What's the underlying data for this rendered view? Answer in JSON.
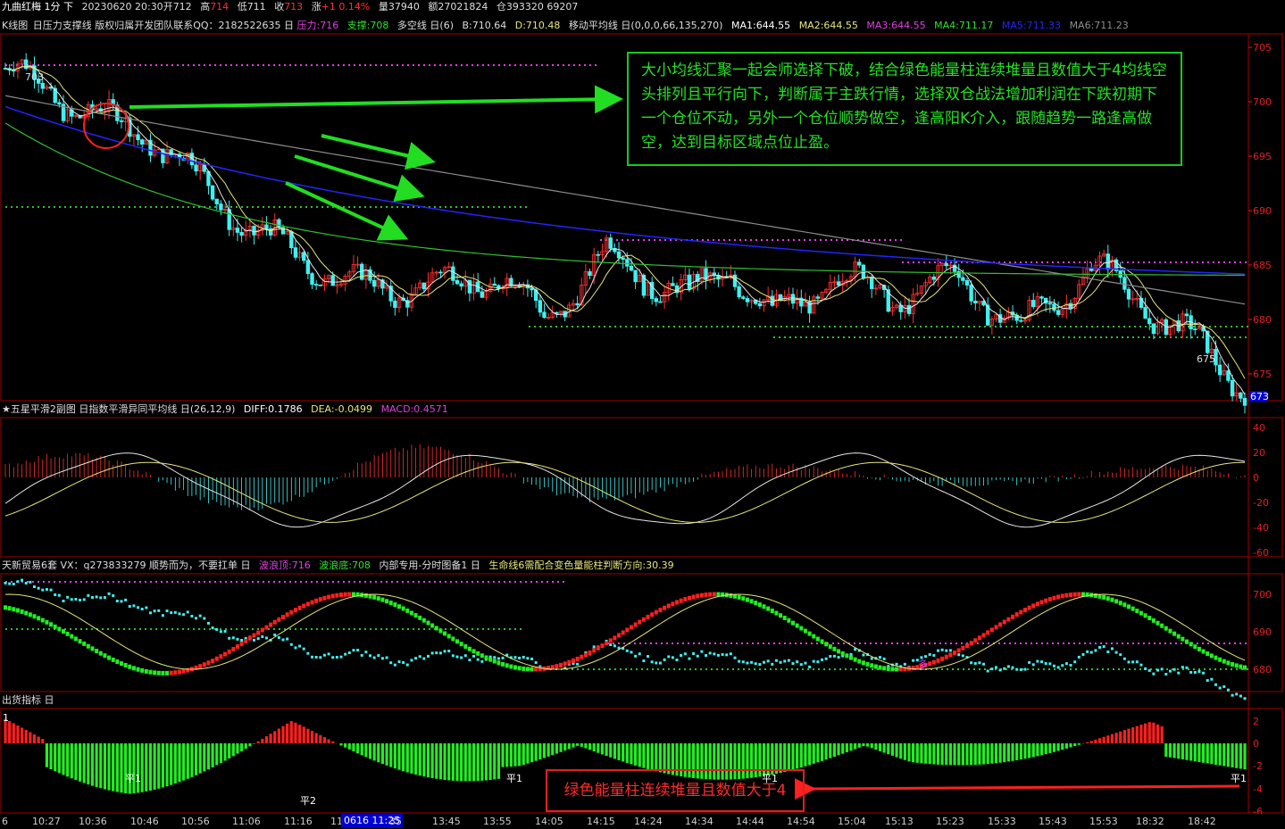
{
  "header": {
    "title": "九曲红梅 1分 下",
    "date": "20230620 20:30",
    "open_label": "开",
    "open": "712",
    "high_label": "高",
    "high": "714",
    "low_label": "低",
    "low": "711",
    "close_label": "收",
    "close": "713",
    "change_label": "涨",
    "change": "+1 0.14%",
    "volume": "量37940",
    "amount": "额27021824",
    "position": "仓393320 69207"
  },
  "kline_panel": {
    "label": "K线图",
    "indicator": "日压力支撑线 版权归属开发团队联系QQ：2182522635 日",
    "pressure": "压力:716",
    "support": "支撑:708",
    "multi_empty": "多空线 日(6)",
    "b": "B:710.64",
    "d": "D:710.48",
    "ma_name": "移动平均线 日(0,0,0,66,135,270)",
    "ma1": "MA1:644.55",
    "ma2": "MA2:644.55",
    "ma3": "MA3:644.55",
    "ma4": "MA4:711.17",
    "ma5": "MA5:711.33",
    "ma6": "MA6:711.23",
    "price_axis": [
      "705",
      "700",
      "695",
      "690",
      "685",
      "680",
      "675"
    ],
    "current_price": "673",
    "high_marker": "703",
    "low_marker": "675"
  },
  "macd_panel": {
    "title": "★五星平滑2副图 日指数平滑异同平均线 日(26,12,9)",
    "diff": "DIFF:0.1786",
    "dea": "DEA:-0.0499",
    "macd": "MACD:0.4571",
    "axis": [
      "40",
      "20",
      "0",
      "-20",
      "-40",
      "-60"
    ]
  },
  "trade_panel": {
    "title": "天新贸易6套 VX：q273833279  顺势而为，不要扛单 日",
    "wave_top": "波浪顶:716",
    "wave_bottom": "波浪底:708",
    "internal": "内部专用-分时图备1 日",
    "life_line": "生命线6需配合变色量能柱判断方向:30.39",
    "axis": [
      "700",
      "690",
      "680"
    ],
    "tag_duo": "多"
  },
  "out_panel": {
    "title": "出货指标 日",
    "axis": [
      "2",
      "0",
      "-2",
      "-4",
      "-6"
    ],
    "tags": [
      "平1",
      "平2",
      "平1",
      "平1",
      "平1"
    ],
    "top_tag": "1"
  },
  "annotations": {
    "green_box": "大小均线汇聚一起会师选择下破，结合绿色能量柱连续堆量且数值大于4均线空头排列且平行向下，判断属于主跌行情，选择双仓战法增加利润在下跌初期下一个仓位不动，另外一个仓位顺势做空，逢高阳K介入，跟随趋势一路逢高做空，达到目标区域点位止盈。",
    "red_box": "绿色能量柱连续堆量且数值大于4"
  },
  "time_axis": {
    "first": "6",
    "labels": [
      "10:27",
      "10:36",
      "10:46",
      "10:56",
      "11:06",
      "11:16",
      "11",
      "0616 11:25",
      "35",
      "13:45",
      "13:55",
      "14:05",
      "14:15",
      "14:24",
      "14:34",
      "14:44",
      "14:54",
      "15:04",
      "15:13",
      "15:23",
      "15:33",
      "15:43",
      "15:53",
      "18:32",
      "18:42"
    ]
  },
  "colors": {
    "up": "#ff3030",
    "down": "#40f0f0",
    "ma_blue": "#2424ff",
    "ma_green": "#30c030",
    "ma_gray": "#8c8c8c",
    "ma_white": "#e6e6e6",
    "ma_yellow": "#e6e67a",
    "pressure": "#e040e0",
    "support": "#30c030",
    "axis_red": "#b00000"
  }
}
